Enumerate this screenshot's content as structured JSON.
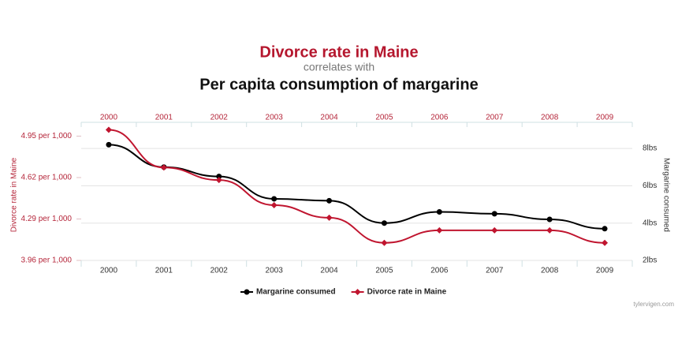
{
  "chart_data": {
    "type": "line",
    "title": "Divorce rate in Maine",
    "subtitle": "correlates with",
    "title2": "Per capita consumption of margarine",
    "y_label": "Divorce rate in Maine",
    "y2_label": "Margarine consumed",
    "watermark": "tylervigen.com",
    "categories": [
      "2000",
      "2001",
      "2002",
      "2003",
      "2004",
      "2005",
      "2006",
      "2007",
      "2008",
      "2009"
    ],
    "series": [
      {
        "name": "Margarine consumed",
        "color": "#000000",
        "axis": "y2",
        "marker": "circle",
        "values": [
          8.2,
          7.0,
          6.5,
          5.3,
          5.2,
          4.0,
          4.6,
          4.5,
          4.2,
          3.7
        ]
      },
      {
        "name": "Divorce rate in Maine",
        "color": "#c0152f",
        "axis": "y",
        "marker": "diamond",
        "values": [
          5.0,
          4.7,
          4.6,
          4.4,
          4.3,
          4.1,
          4.2,
          4.2,
          4.2,
          4.1
        ]
      }
    ],
    "ylim": [
      3.96,
      5.06
    ],
    "yticks": [
      {
        "value": 3.96,
        "label": "3.96  per  1,000"
      },
      {
        "value": 4.29,
        "label": "4.29  per  1,000"
      },
      {
        "value": 4.62,
        "label": "4.62  per  1,000"
      },
      {
        "value": 4.95,
        "label": "4.95  per  1,000"
      }
    ],
    "y2lim": [
      2,
      9.4
    ],
    "y2ticks": [
      {
        "value": 2,
        "label": "2lbs"
      },
      {
        "value": 4,
        "label": "4lbs"
      },
      {
        "value": 6,
        "label": "6lbs"
      },
      {
        "value": 8,
        "label": "8lbs"
      }
    ],
    "grid": true
  }
}
